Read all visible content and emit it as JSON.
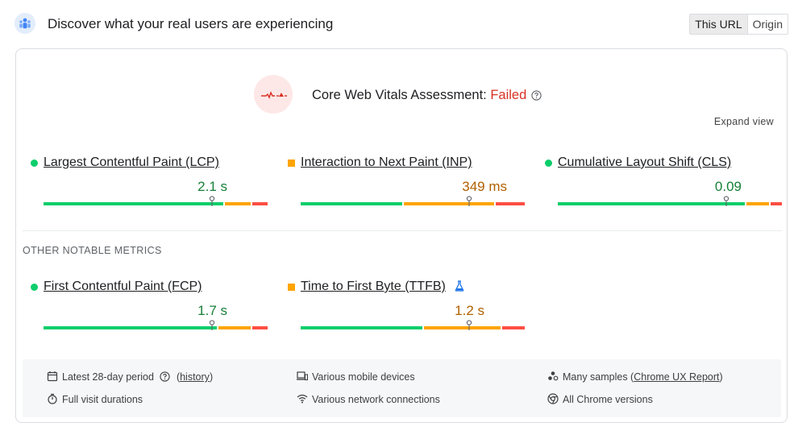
{
  "header": {
    "title": "Discover what your real users are experiencing",
    "tabs": [
      "This URL",
      "Origin"
    ],
    "active_tab": "This URL"
  },
  "assessment": {
    "label": "Core Web Vitals Assessment: ",
    "status": "Failed",
    "expand_label": "Expand view"
  },
  "core_metrics": [
    {
      "name": "Largest Contentful Paint (LCP)",
      "value": "2.1 s",
      "rating": "good",
      "distribution": [
        0.81,
        0.12,
        0.07
      ],
      "marker": 0.75
    },
    {
      "name": "Interaction to Next Paint (INP)",
      "value": "349 ms",
      "rating": "needs-improvement",
      "distribution": [
        0.46,
        0.41,
        0.13
      ],
      "marker": 0.75
    },
    {
      "name": "Cumulative Layout Shift (CLS)",
      "value": "0.09",
      "rating": "good",
      "distribution": [
        0.84,
        0.11,
        0.05
      ],
      "marker": 0.75
    }
  ],
  "other_label": "OTHER NOTABLE METRICS",
  "other_metrics": [
    {
      "name": "First Contentful Paint (FCP)",
      "value": "1.7 s",
      "rating": "good",
      "distribution": [
        0.78,
        0.15,
        0.07
      ],
      "marker": 0.75
    },
    {
      "name": "Time to First Byte (TTFB)",
      "value": "1.2 s",
      "rating": "needs-improvement",
      "distribution": [
        0.55,
        0.35,
        0.1
      ],
      "marker": 0.75
    }
  ],
  "footer": {
    "period_label": "Latest 28-day period",
    "history_open": "(",
    "history_link": "history",
    "history_close": ")",
    "visit_label": "Full visit durations",
    "devices_label": "Various mobile devices",
    "network_label": "Various network connections",
    "samples_label": "Many samples (",
    "samples_link": "Chrome UX Report",
    "samples_close": ")",
    "chrome_label": "All Chrome versions"
  },
  "colors": {
    "good": "#0cce6b",
    "average": "#ffa400",
    "poor": "#ff4e42",
    "fail_text": "#d93025",
    "good_text": "#188038",
    "average_text": "#b06000"
  }
}
